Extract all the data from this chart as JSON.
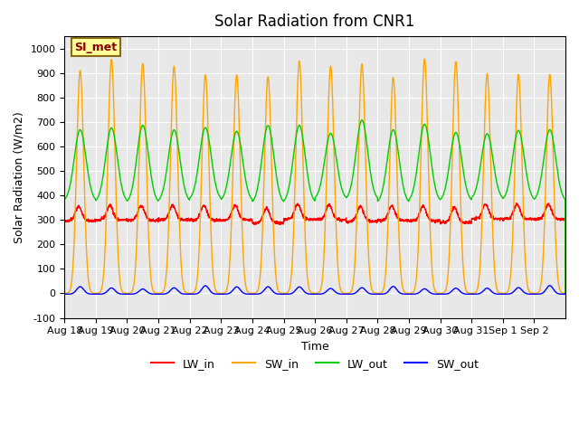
{
  "title": "Solar Radiation from CNR1",
  "xlabel": "Time",
  "ylabel": "Solar Radiation (W/m2)",
  "ylim": [
    -100,
    1050
  ],
  "annotation": "SI_met",
  "background_color": "#e8e8e8",
  "legend_entries": [
    "LW_in",
    "SW_in",
    "LW_out",
    "SW_out"
  ],
  "legend_colors": [
    "#ff0000",
    "#ffa500",
    "#00cc00",
    "#0000ff"
  ],
  "x_tick_labels": [
    "Aug 18",
    "Aug 19",
    "Aug 20",
    "Aug 21",
    "Aug 22",
    "Aug 23",
    "Aug 24",
    "Aug 25",
    "Aug 26",
    "Aug 27",
    "Aug 28",
    "Aug 29",
    "Aug 30",
    "Aug 31",
    "Sep 1",
    "Sep 2"
  ],
  "n_days": 16
}
